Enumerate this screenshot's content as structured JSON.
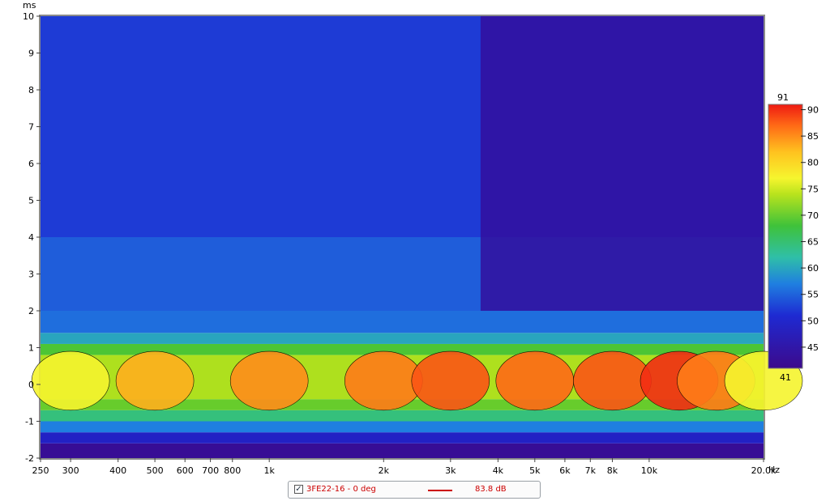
{
  "chart_data": {
    "type": "heatmap",
    "subtype": "cumulative spectral decay / wavelet waterfall (contour)",
    "x_scale": "log",
    "xlim": [
      250,
      20000
    ],
    "x_ticks": [
      {
        "value": 250,
        "label": "250"
      },
      {
        "value": 300,
        "label": "300"
      },
      {
        "value": 400,
        "label": "400"
      },
      {
        "value": 500,
        "label": "500"
      },
      {
        "value": 600,
        "label": "600"
      },
      {
        "value": 700,
        "label": "700"
      },
      {
        "value": 800,
        "label": "800"
      },
      {
        "value": 1000,
        "label": "1k"
      },
      {
        "value": 2000,
        "label": "2k"
      },
      {
        "value": 3000,
        "label": "3k"
      },
      {
        "value": 4000,
        "label": "4k"
      },
      {
        "value": 5000,
        "label": "5k"
      },
      {
        "value": 6000,
        "label": "6k"
      },
      {
        "value": 7000,
        "label": "7k"
      },
      {
        "value": 8000,
        "label": "8k"
      },
      {
        "value": 10000,
        "label": "10k"
      },
      {
        "value": 20000,
        "label": "20.0k"
      }
    ],
    "x_unit": "Hz",
    "y_unit": "ms",
    "ylim": [
      -2,
      10
    ],
    "y_ticks": [
      -2,
      -1,
      0,
      1,
      2,
      3,
      4,
      5,
      6,
      7,
      8,
      9,
      10
    ],
    "colorbar": {
      "min": 41,
      "max": 91,
      "min_label": "41",
      "max_label": "91",
      "ticks": [
        90,
        85,
        80,
        75,
        70,
        65,
        60,
        55,
        50,
        45
      ]
    },
    "ridge": {
      "time_ms": 0.1,
      "peak_levels": [
        {
          "freq": 300,
          "level": 78
        },
        {
          "freq": 500,
          "level": 83
        },
        {
          "freq": 1000,
          "level": 85
        },
        {
          "freq": 2000,
          "level": 86
        },
        {
          "freq": 3000,
          "level": 88
        },
        {
          "freq": 5000,
          "level": 87
        },
        {
          "freq": 8000,
          "level": 88
        },
        {
          "freq": 12000,
          "level": 90
        },
        {
          "freq": 15000,
          "level": 86
        },
        {
          "freq": 20000,
          "level": 78
        }
      ]
    },
    "series": [
      {
        "name": "3FE22-16 - 0 deg",
        "value": "83.8 dB",
        "color": "#cc0000"
      }
    ]
  },
  "legend": {
    "checked": "✓",
    "name": "3FE22-16 - 0 deg",
    "value": "83.8 dB"
  },
  "colors": {
    "frame": "#8a8a8a",
    "contour_line": "#000000",
    "background": "#ffffff"
  }
}
